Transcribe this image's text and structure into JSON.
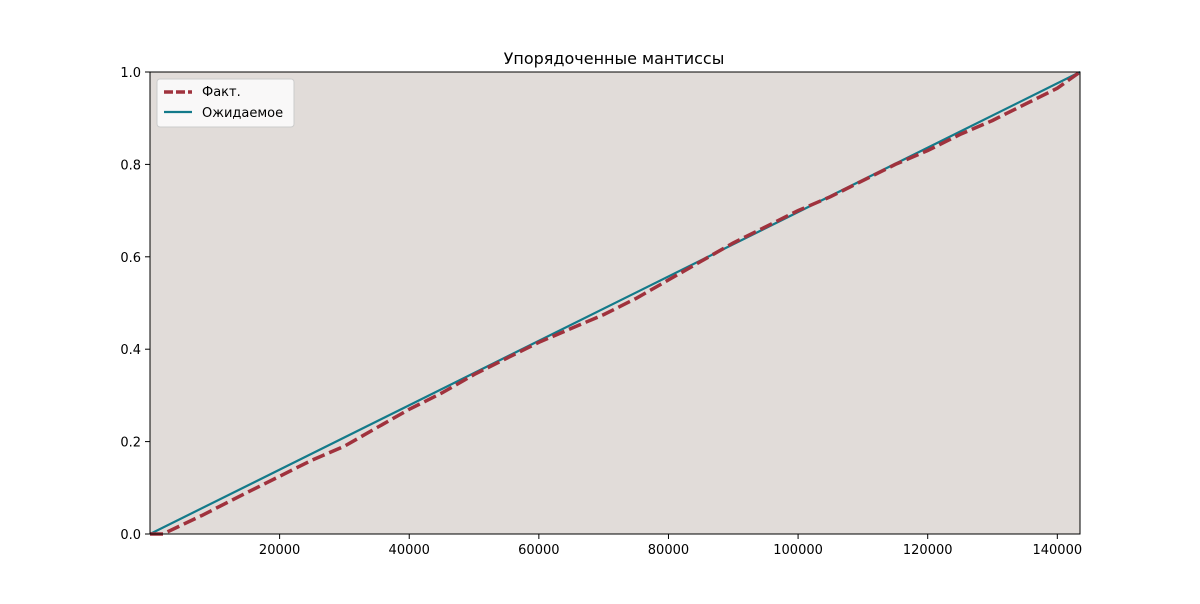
{
  "chart_data": {
    "type": "line",
    "title": "Упорядоченные мантиссы",
    "xlabel": "",
    "ylabel": "",
    "xlim": [
      0,
      143500
    ],
    "ylim": [
      0,
      1
    ],
    "x_ticks": [
      20000,
      40000,
      60000,
      80000,
      100000,
      120000,
      140000
    ],
    "y_ticks": [
      0.0,
      0.2,
      0.4,
      0.6,
      0.8,
      1.0
    ],
    "x_tick_labels": [
      "20000",
      "40000",
      "60000",
      "80000",
      "100000",
      "120000",
      "140000"
    ],
    "y_tick_labels": [
      "0.0",
      "0.2",
      "0.4",
      "0.6",
      "0.8",
      "1.0"
    ],
    "grid": false,
    "legend_position": "top-left",
    "background_color": "#e1dcd9",
    "series": [
      {
        "name": "Факт.",
        "style": "dashed",
        "color": "#a0323d",
        "x": [
          0,
          2000,
          8000,
          15000,
          20000,
          25000,
          30000,
          35000,
          40000,
          45000,
          50000,
          55000,
          60000,
          65000,
          70000,
          75000,
          80000,
          85000,
          90000,
          95000,
          100000,
          105000,
          110000,
          115000,
          120000,
          125000,
          130000,
          135000,
          140000,
          143500
        ],
        "y": [
          0.0,
          0.0,
          0.04,
          0.09,
          0.125,
          0.16,
          0.19,
          0.23,
          0.27,
          0.305,
          0.345,
          0.38,
          0.415,
          0.445,
          0.475,
          0.51,
          0.55,
          0.59,
          0.63,
          0.665,
          0.7,
          0.73,
          0.765,
          0.8,
          0.83,
          0.865,
          0.895,
          0.93,
          0.965,
          1.0
        ]
      },
      {
        "name": "Ожидаемое",
        "style": "solid",
        "color": "#137a8a",
        "x": [
          0,
          143500
        ],
        "y": [
          0.0,
          1.0
        ]
      }
    ]
  }
}
